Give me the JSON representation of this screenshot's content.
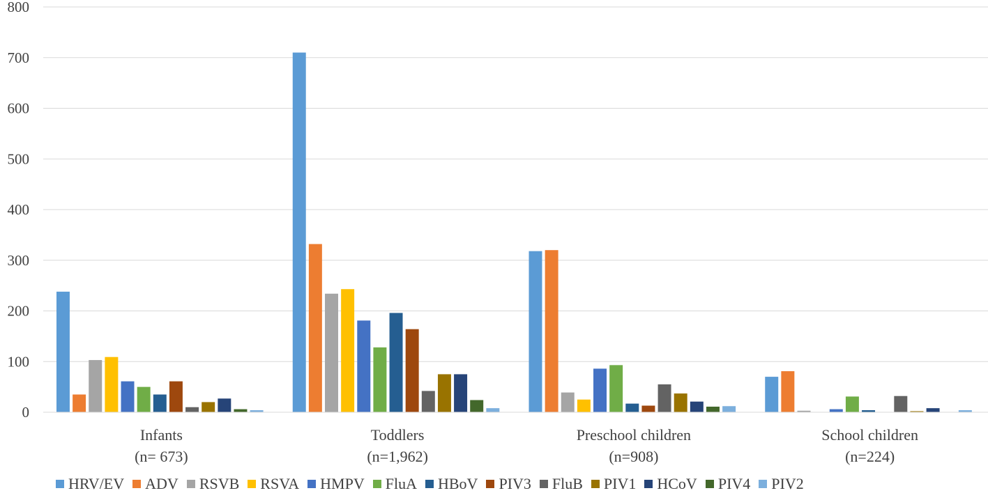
{
  "chart_data": {
    "type": "bar",
    "title": "",
    "xlabel": "",
    "ylabel": "",
    "ylim": [
      0,
      800
    ],
    "yticks": [
      0,
      100,
      200,
      300,
      400,
      500,
      600,
      700,
      800
    ],
    "grid": true,
    "legend_position": "bottom",
    "categories": [
      {
        "name": "Infants",
        "sub": "(n= 673)"
      },
      {
        "name": "Toddlers",
        "sub": "(n=1,962)"
      },
      {
        "name": "Preschool children",
        "sub": "(n=908)"
      },
      {
        "name": "School children",
        "sub": "(n=224)"
      }
    ],
    "series": [
      {
        "name": "HRV/EV",
        "color": "#5b9bd5",
        "values": [
          238,
          710,
          318,
          70
        ]
      },
      {
        "name": "ADV",
        "color": "#ed7d31",
        "values": [
          35,
          332,
          320,
          81
        ]
      },
      {
        "name": "RSVB",
        "color": "#a5a5a5",
        "values": [
          103,
          234,
          39,
          3
        ]
      },
      {
        "name": "RSVA",
        "color": "#ffc000",
        "values": [
          109,
          243,
          25,
          0
        ]
      },
      {
        "name": "HMPV",
        "color": "#4472c4",
        "values": [
          61,
          181,
          86,
          6
        ]
      },
      {
        "name": "FluA",
        "color": "#70ad47",
        "values": [
          50,
          128,
          93,
          31
        ]
      },
      {
        "name": "HBoV",
        "color": "#255e91",
        "values": [
          35,
          196,
          17,
          4
        ]
      },
      {
        "name": "PIV3",
        "color": "#9e480e",
        "values": [
          61,
          164,
          13,
          0
        ]
      },
      {
        "name": "FluB",
        "color": "#636363",
        "values": [
          10,
          42,
          55,
          32
        ]
      },
      {
        "name": "PIV1",
        "color": "#997300",
        "values": [
          20,
          75,
          37,
          2
        ]
      },
      {
        "name": "HCoV",
        "color": "#264478",
        "values": [
          27,
          75,
          21,
          8
        ]
      },
      {
        "name": "PIV4",
        "color": "#43682b",
        "values": [
          6,
          24,
          11,
          0
        ]
      },
      {
        "name": "PIV2",
        "color": "#7cafdd",
        "values": [
          4,
          8,
          12,
          4
        ]
      }
    ]
  }
}
